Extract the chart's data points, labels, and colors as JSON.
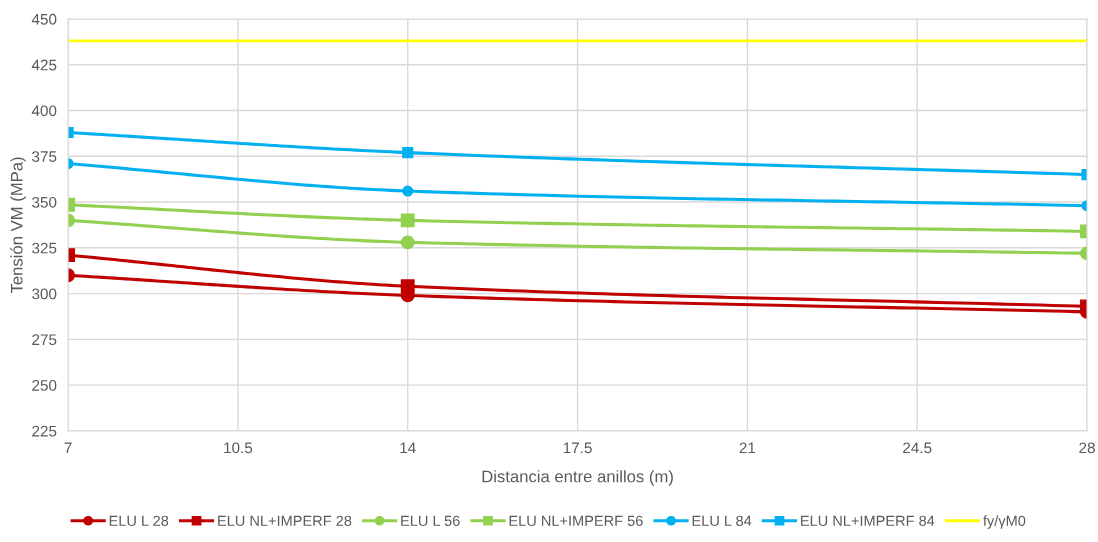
{
  "chart_data": {
    "type": "line",
    "xlabel": "Distancia entre anillos (m)",
    "ylabel": "Tensión VM (MPa)",
    "x": [
      7,
      14,
      28
    ],
    "series": [
      {
        "name": "ELU L 28",
        "color": "#c00000",
        "marker": "circle",
        "values": [
          310,
          299,
          290
        ]
      },
      {
        "name": "ELU NL+IMPERF 28",
        "color": "#c00000",
        "marker": "square",
        "values": [
          321,
          304,
          293
        ]
      },
      {
        "name": "ELU L 56",
        "color": "#92d050",
        "marker": "circle",
        "values": [
          340,
          328,
          322
        ]
      },
      {
        "name": "ELU NL+IMPERF 56",
        "color": "#92d050",
        "marker": "square",
        "values": [
          348.5,
          340,
          334
        ]
      },
      {
        "name": "ELU L 84",
        "color": "#00b0f0",
        "marker": "circle",
        "values": [
          371,
          356,
          348
        ]
      },
      {
        "name": "ELU NL+IMPERF 84",
        "color": "#00b0f0",
        "marker": "square",
        "values": [
          388,
          377,
          365
        ]
      }
    ],
    "ref_lines": [
      {
        "axis": "y",
        "value": 438,
        "label": "fy/γM0",
        "color": "#ffff00"
      }
    ],
    "xlim": [
      7,
      28
    ],
    "xticks": [
      7,
      10.5,
      14,
      17.5,
      21,
      24.5,
      28
    ],
    "ylim": [
      225,
      450
    ],
    "yticks": [
      225,
      250,
      275,
      300,
      325,
      350,
      375,
      400,
      425,
      450
    ],
    "grid": true,
    "legend": "bottom",
    "line_style": "solid"
  }
}
